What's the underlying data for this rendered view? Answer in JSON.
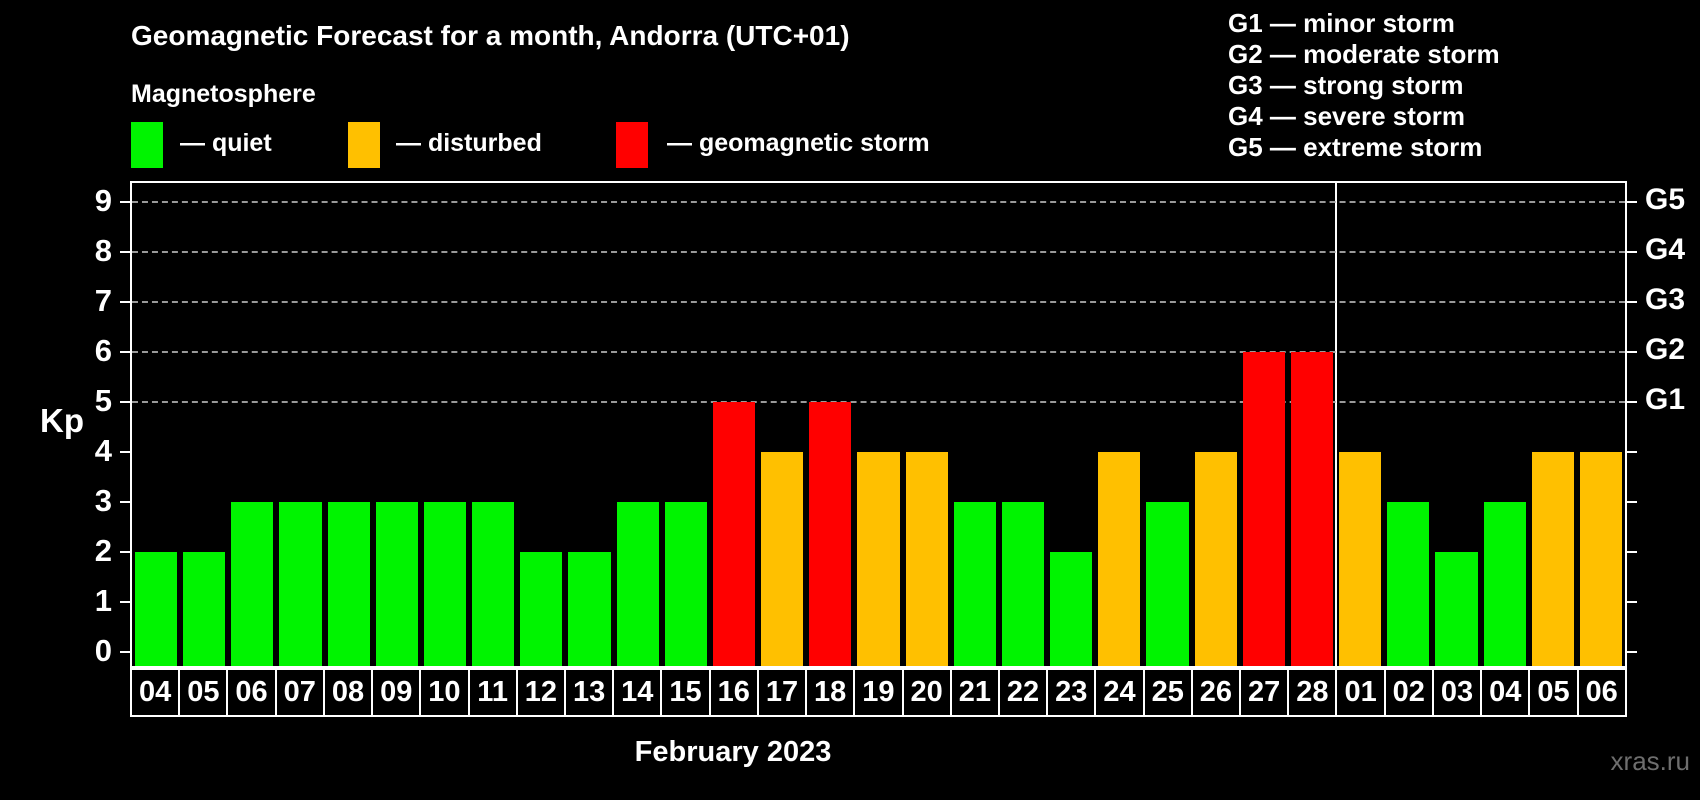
{
  "title": "Geomagnetic Forecast for a month, Andorra (UTC+01)",
  "subtitle": "Magnetosphere",
  "legend": {
    "items": [
      {
        "status": "quiet",
        "label": "— quiet",
        "color": "#00f400"
      },
      {
        "status": "disturbed",
        "label": "— disturbed",
        "color": "#ffc000"
      },
      {
        "status": "storm",
        "label": "— geomagnetic storm",
        "color": "#ff0000"
      }
    ]
  },
  "g_legend": [
    "G1 — minor storm",
    "G2 — moderate storm",
    "G3 — strong storm",
    "G4 — severe storm",
    "G5 — extreme storm"
  ],
  "axis": {
    "kp_label": "Kp",
    "y_ticks": [
      "0",
      "1",
      "2",
      "3",
      "4",
      "5",
      "6",
      "7",
      "8",
      "9"
    ],
    "g_ticks": [
      {
        "kp": 5,
        "label": "G1"
      },
      {
        "kp": 6,
        "label": "G2"
      },
      {
        "kp": 7,
        "label": "G3"
      },
      {
        "kp": 8,
        "label": "G4"
      },
      {
        "kp": 9,
        "label": "G5"
      }
    ]
  },
  "x_axis_label": "February 2023",
  "watermark": "xras.ru",
  "colors": {
    "quiet": "#00f400",
    "disturbed": "#ffc000",
    "storm": "#ff0000",
    "grid": "#9a9a9a",
    "axis": "#ffffff",
    "background": "#000000"
  },
  "chart_data": {
    "type": "bar",
    "title": "Geomagnetic Forecast for a month, Andorra (UTC+01)",
    "xlabel": "February 2023",
    "ylabel": "Kp",
    "ylim": [
      0,
      9
    ],
    "grid": "horizontal dashed lines at Kp 5,6,7,8,9 (G1–G5)",
    "legend_position": "top-left",
    "month_separator_after_index": 24,
    "categories": [
      "04",
      "05",
      "06",
      "07",
      "08",
      "09",
      "10",
      "11",
      "12",
      "13",
      "14",
      "15",
      "16",
      "17",
      "18",
      "19",
      "20",
      "21",
      "22",
      "23",
      "24",
      "25",
      "26",
      "27",
      "28",
      "01",
      "02",
      "03",
      "04",
      "05",
      "06"
    ],
    "series": [
      {
        "name": "Kp forecast",
        "values": [
          2,
          2,
          3,
          3,
          3,
          3,
          3,
          3,
          2,
          2,
          3,
          3,
          5,
          4,
          5,
          4,
          4,
          3,
          3,
          2,
          4,
          3,
          4,
          6,
          6,
          4,
          3,
          2,
          3,
          4,
          4
        ]
      }
    ],
    "statuses": [
      "quiet",
      "quiet",
      "quiet",
      "quiet",
      "quiet",
      "quiet",
      "quiet",
      "quiet",
      "quiet",
      "quiet",
      "quiet",
      "quiet",
      "storm",
      "disturbed",
      "storm",
      "disturbed",
      "disturbed",
      "quiet",
      "quiet",
      "quiet",
      "disturbed",
      "quiet",
      "disturbed",
      "storm",
      "storm",
      "disturbed",
      "quiet",
      "quiet",
      "quiet",
      "disturbed",
      "disturbed"
    ]
  }
}
